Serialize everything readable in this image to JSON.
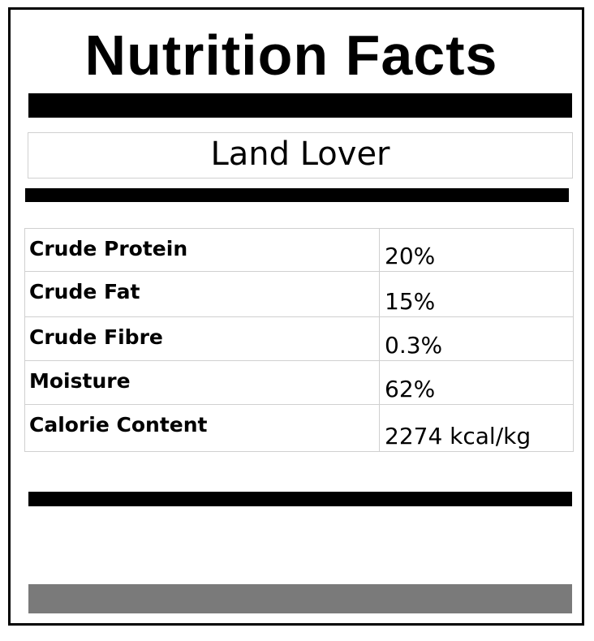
{
  "label": {
    "title": "Nutrition Facts",
    "product_name": "Land Lover",
    "footer_bar_color": "#7a7a7a"
  },
  "facts": [
    {
      "nutrient": "Crude Protein",
      "amount": "20%"
    },
    {
      "nutrient": "Crude Fat",
      "amount": "15%"
    },
    {
      "nutrient": "Crude Fibre",
      "amount": "0.3%"
    },
    {
      "nutrient": "Moisture",
      "amount": "62%"
    },
    {
      "nutrient": "Calorie Content",
      "amount": "2274 kcal/kg"
    }
  ]
}
